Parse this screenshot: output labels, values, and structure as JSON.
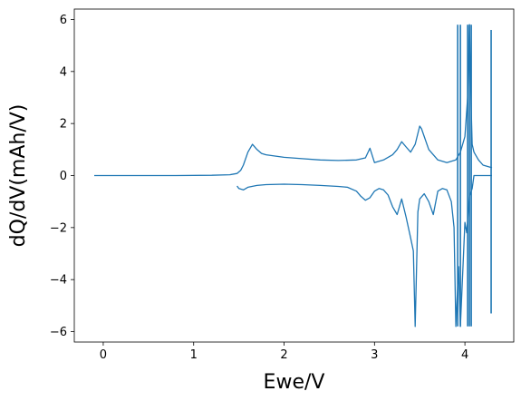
{
  "chart_data": {
    "type": "line",
    "title": "",
    "xlabel": "Ewe/V",
    "ylabel": "dQ/dV(mAh/V)",
    "xlim": [
      -0.32,
      4.54
    ],
    "ylim": [
      -6.4,
      6.4
    ],
    "xticks": [
      0,
      1,
      2,
      3,
      4
    ],
    "yticks": [
      -6,
      -4,
      -2,
      0,
      2,
      4,
      6
    ],
    "xtick_labels": [
      "0",
      "1",
      "2",
      "3",
      "4"
    ],
    "ytick_labels": [
      "−6",
      "−4",
      "−2",
      "0",
      "2",
      "4",
      "6"
    ],
    "grid": false,
    "legend": "none",
    "color": "#1f77b4",
    "series": [
      {
        "x": [
          -0.1,
          0.3,
          0.8,
          1.2,
          1.4,
          1.48,
          1.52,
          1.55,
          1.6,
          1.65,
          1.7,
          1.75,
          1.8,
          1.9,
          2.0,
          2.2,
          2.4,
          2.6,
          2.8,
          2.9,
          2.95,
          3.0,
          3.1,
          3.2,
          3.25,
          3.3,
          3.35,
          3.4,
          3.45,
          3.5,
          3.52,
          3.55,
          3.6,
          3.7,
          3.8,
          3.9,
          3.95,
          4.0,
          4.03,
          4.05,
          4.07,
          4.08,
          4.1,
          4.15,
          4.2,
          4.3
        ],
        "y": [
          0.0,
          0.0,
          0.0,
          0.01,
          0.03,
          0.08,
          0.2,
          0.4,
          0.9,
          1.2,
          1.0,
          0.85,
          0.8,
          0.75,
          0.7,
          0.65,
          0.6,
          0.58,
          0.6,
          0.68,
          1.05,
          0.5,
          0.6,
          0.8,
          1.0,
          1.3,
          1.1,
          0.9,
          1.2,
          1.9,
          1.8,
          1.5,
          1.0,
          0.6,
          0.5,
          0.6,
          0.9,
          1.5,
          3.0,
          5.8,
          2.5,
          1.2,
          0.9,
          0.6,
          0.4,
          0.3
        ]
      },
      {
        "x": [
          1.48,
          1.5,
          1.55,
          1.6,
          1.7,
          1.8,
          2.0,
          2.2,
          2.4,
          2.6,
          2.7,
          2.8,
          2.85,
          2.9,
          2.95,
          3.0,
          3.05,
          3.1,
          3.15,
          3.2,
          3.25,
          3.3,
          3.35,
          3.4,
          3.43,
          3.45,
          3.48,
          3.5,
          3.55,
          3.6,
          3.65,
          3.7,
          3.75,
          3.8,
          3.85,
          3.88,
          3.9,
          3.93,
          3.95,
          4.0,
          4.02,
          4.05,
          4.08,
          4.1,
          4.15,
          4.2,
          4.3
        ],
        "y": [
          -0.4,
          -0.5,
          -0.55,
          -0.45,
          -0.38,
          -0.35,
          -0.33,
          -0.35,
          -0.38,
          -0.42,
          -0.45,
          -0.6,
          -0.8,
          -0.95,
          -0.85,
          -0.6,
          -0.5,
          -0.55,
          -0.75,
          -1.2,
          -1.5,
          -0.9,
          -1.6,
          -2.4,
          -2.9,
          -5.8,
          -1.4,
          -0.9,
          -0.7,
          -1.0,
          -1.5,
          -0.6,
          -0.5,
          -0.55,
          -1.0,
          -2.0,
          -5.8,
          -3.5,
          -5.8,
          -1.8,
          -2.2,
          -0.8,
          -0.5,
          0.0,
          0.0,
          0.0,
          0.0
        ]
      }
    ],
    "spikes": [
      {
        "x": 3.92,
        "min": -5.8,
        "max": 5.8
      },
      {
        "x": 3.95,
        "min": -5.8,
        "max": 5.8
      },
      {
        "x": 4.03,
        "min": -5.8,
        "max": 5.8
      },
      {
        "x": 4.05,
        "min": -5.8,
        "max": 5.8
      },
      {
        "x": 4.07,
        "min": -5.8,
        "max": 5.8
      },
      {
        "x": 4.29,
        "min": -5.3,
        "max": 5.6
      }
    ]
  }
}
